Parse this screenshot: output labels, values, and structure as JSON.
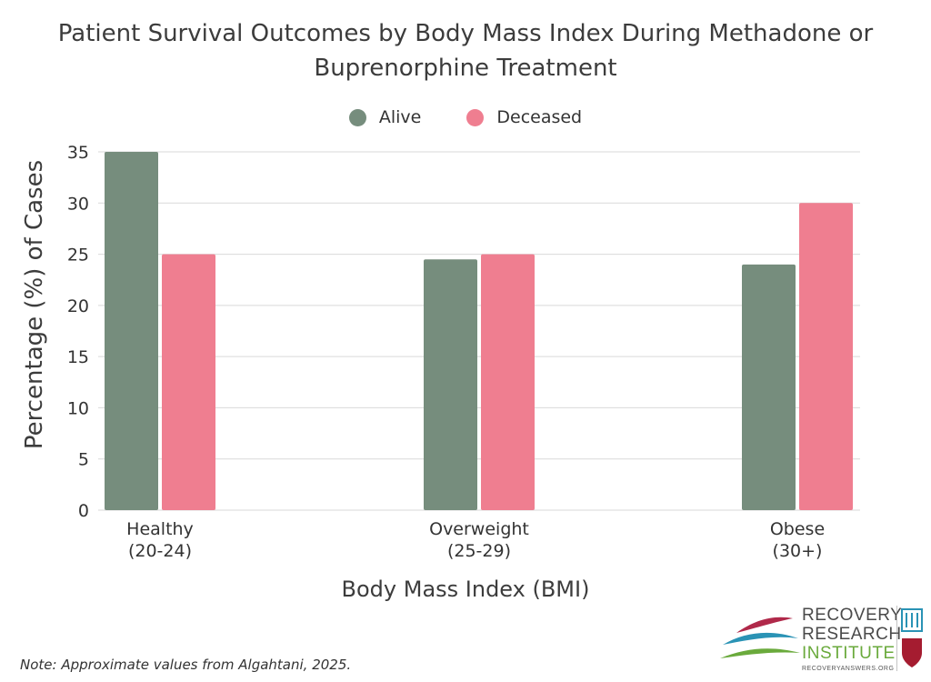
{
  "chart_data": {
    "type": "bar",
    "title": "Patient Survival Outcomes by Body Mass Index During Methadone or Buprenorphine Treatment",
    "categories": [
      {
        "line1": "Healthy",
        "line2": "(20-24)"
      },
      {
        "line1": "Overweight",
        "line2": "(25-29)"
      },
      {
        "line1": "Obese",
        "line2": "(30+)"
      }
    ],
    "series": [
      {
        "name": "Alive",
        "color": "#768d7d",
        "values": [
          35,
          24.5,
          24
        ]
      },
      {
        "name": "Deceased",
        "color": "#ef7e90",
        "values": [
          25,
          25,
          30
        ]
      }
    ],
    "xlabel": "Body Mass Index (BMI)",
    "ylabel": "Percentage (%) of Cases",
    "ylim": [
      0,
      35
    ],
    "yticks": [
      "0",
      "5",
      "10",
      "15",
      "20",
      "25",
      "30",
      "35"
    ],
    "grid": true,
    "legend_position": "top"
  },
  "note": "Note: Approximate values from Algahtani, 2025.",
  "logo": {
    "line1": "RECOVERY",
    "line2": "RESEARCH",
    "line3": "INSTITUTE",
    "url": "RECOVERYANSWERS.ORG"
  }
}
